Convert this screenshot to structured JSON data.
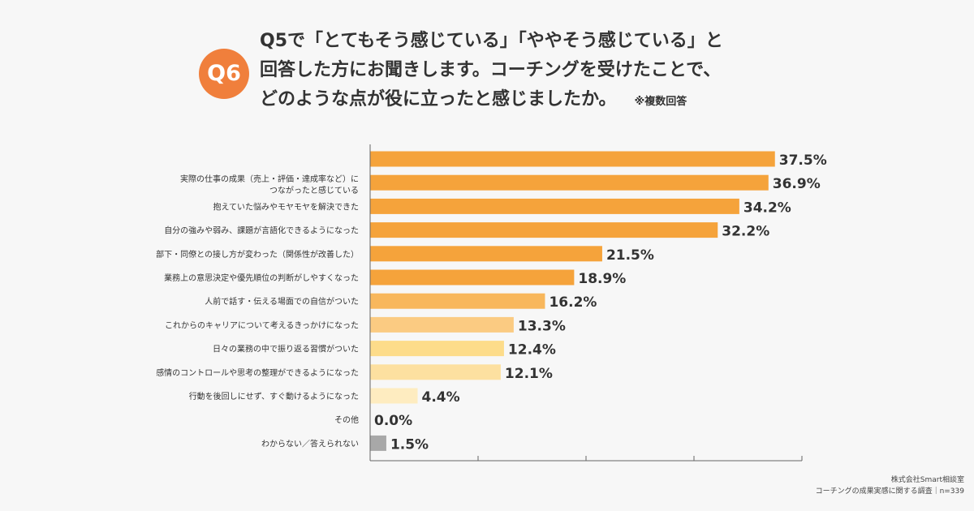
{
  "header": {
    "badge": "Q6",
    "question_lines": [
      "Q5で「とてもそう感じている」「ややそう感じている」と",
      "回答した方にお聞きします。コーチングを受けたことで、",
      "どのような点が役に立ったと感じましたか。"
    ],
    "note": "※複数回答"
  },
  "chart_data": {
    "type": "bar",
    "orientation": "horizontal",
    "title": "Q5で「とてもそう感じている」「ややそう感じている」と回答した方にお聞きします。コーチングを受けたことで、どのような点が役に立ったと感じましたか。",
    "xlim": [
      0,
      40
    ],
    "xticks": [
      0,
      10,
      20,
      30,
      40
    ],
    "unit": "%",
    "bars": [
      {
        "label": "",
        "value": 37.5,
        "value_label": "37.5%",
        "color": "#f5a33b"
      },
      {
        "label": "実際の仕事の成果（売上・評価・達成率など）に\nつながったと感じている",
        "value": 36.9,
        "value_label": "36.9%",
        "color": "#f5a33b"
      },
      {
        "label": "抱えていた悩みやモヤモヤを解決できた",
        "value": 34.2,
        "value_label": "34.2%",
        "color": "#f5a33b"
      },
      {
        "label": "自分の強みや弱み、課題が言語化できるようになった",
        "value": 32.2,
        "value_label": "32.2%",
        "color": "#f5a33b"
      },
      {
        "label": "部下・同僚との接し方が変わった（関係性が改善した）",
        "value": 21.5,
        "value_label": "21.5%",
        "color": "#f5a33b"
      },
      {
        "label": "業務上の意思決定や優先順位の判断がしやすくなった",
        "value": 18.9,
        "value_label": "18.9%",
        "color": "#f5a33b"
      },
      {
        "label": "人前で話す・伝える場面での自信がついた",
        "value": 16.2,
        "value_label": "16.2%",
        "color": "#f8b75c"
      },
      {
        "label": "これからのキャリアについて考えるきっかけになった",
        "value": 13.3,
        "value_label": "13.3%",
        "color": "#fbcb82"
      },
      {
        "label": "日々の業務の中で振り返る習慣がついた",
        "value": 12.4,
        "value_label": "12.4%",
        "color": "#fddc8a"
      },
      {
        "label": "感情のコントロールや思考の整理ができるようになった",
        "value": 12.1,
        "value_label": "12.1%",
        "color": "#fde0a0"
      },
      {
        "label": "行動を後回しにせず、すぐ動けるようになった",
        "value": 4.4,
        "value_label": "4.4%",
        "color": "#feecc0"
      },
      {
        "label": "その他",
        "value": 0.0,
        "value_label": "0.0%",
        "color": "#fff1d6"
      },
      {
        "label": "わからない／答えられない",
        "value": 1.5,
        "value_label": "1.5%",
        "color": "#a8a8a8"
      }
    ]
  },
  "footer": {
    "company": "株式会社Smart相談室",
    "survey": "コーチングの成果実感に関する調査｜n=339"
  }
}
